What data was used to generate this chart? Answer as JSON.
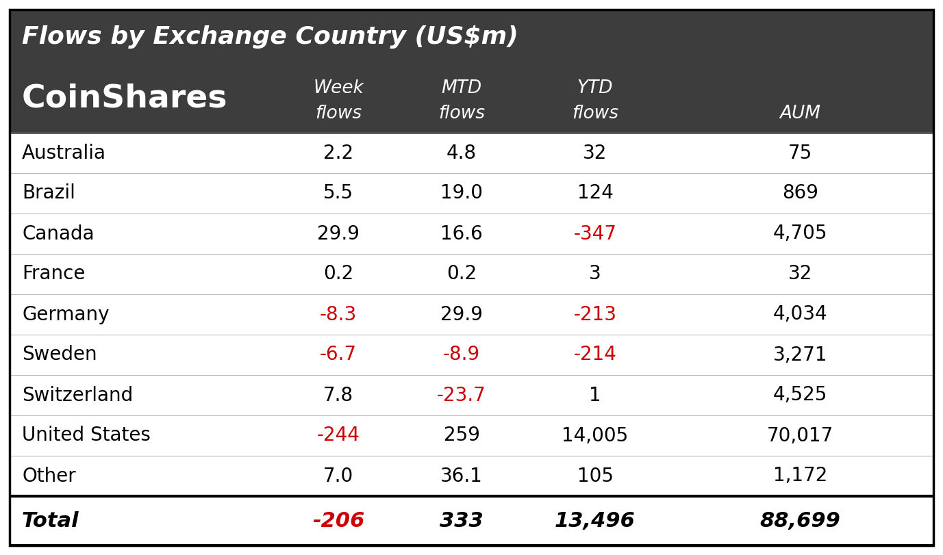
{
  "title": "Flows by Exchange Country (US$m)",
  "coinshares_label": "CoinShares",
  "header_bg": "#3d3d3d",
  "header_text_color": "#ffffff",
  "body_bg": "#ffffff",
  "body_text_color": "#000000",
  "negative_color": "#cc0000",
  "col_headers_line1": [
    "Week",
    "MTD",
    "YTD",
    ""
  ],
  "col_headers_line2": [
    "flows",
    "flows",
    "flows",
    "AUM"
  ],
  "rows": [
    {
      "country": "Australia",
      "week": "2.2",
      "mtd": "4.8",
      "ytd": "32",
      "aum": "75",
      "week_neg": false,
      "mtd_neg": false,
      "ytd_neg": false
    },
    {
      "country": "Brazil",
      "week": "5.5",
      "mtd": "19.0",
      "ytd": "124",
      "aum": "869",
      "week_neg": false,
      "mtd_neg": false,
      "ytd_neg": false
    },
    {
      "country": "Canada",
      "week": "29.9",
      "mtd": "16.6",
      "ytd": "-347",
      "aum": "4,705",
      "week_neg": false,
      "mtd_neg": false,
      "ytd_neg": true
    },
    {
      "country": "France",
      "week": "0.2",
      "mtd": "0.2",
      "ytd": "3",
      "aum": "32",
      "week_neg": false,
      "mtd_neg": false,
      "ytd_neg": false
    },
    {
      "country": "Germany",
      "week": "-8.3",
      "mtd": "29.9",
      "ytd": "-213",
      "aum": "4,034",
      "week_neg": true,
      "mtd_neg": false,
      "ytd_neg": true
    },
    {
      "country": "Sweden",
      "week": "-6.7",
      "mtd": "-8.9",
      "ytd": "-214",
      "aum": "3,271",
      "week_neg": true,
      "mtd_neg": true,
      "ytd_neg": true
    },
    {
      "country": "Switzerland",
      "week": "7.8",
      "mtd": "-23.7",
      "ytd": "1",
      "aum": "4,525",
      "week_neg": false,
      "mtd_neg": true,
      "ytd_neg": false
    },
    {
      "country": "United States",
      "week": "-244",
      "mtd": "259",
      "ytd": "14,005",
      "aum": "70,017",
      "week_neg": true,
      "mtd_neg": false,
      "ytd_neg": false
    },
    {
      "country": "Other",
      "week": "7.0",
      "mtd": "36.1",
      "ytd": "105",
      "aum": "1,172",
      "week_neg": false,
      "mtd_neg": false,
      "ytd_neg": false
    }
  ],
  "total": {
    "country": "Total",
    "week": "-206",
    "mtd": "333",
    "ytd": "13,496",
    "aum": "88,699",
    "week_neg": true,
    "mtd_neg": false,
    "ytd_neg": false
  }
}
